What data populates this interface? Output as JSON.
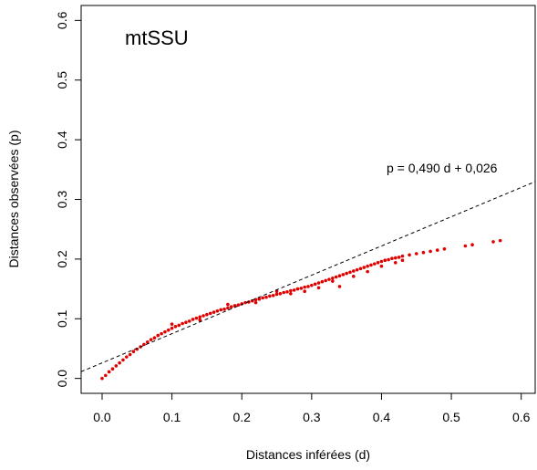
{
  "chart_data": {
    "type": "scatter",
    "title": "",
    "inset_label": "mtSSU",
    "xlabel": "Distances inférées (d)",
    "ylabel": "Distances observées (p)",
    "xlim": [
      -0.03,
      0.62
    ],
    "ylim": [
      -0.025,
      0.625
    ],
    "x_ticks": [
      "0.0",
      "0.1",
      "0.2",
      "0.3",
      "0.4",
      "0.5",
      "0.6"
    ],
    "y_ticks": [
      "0.0",
      "0.1",
      "0.2",
      "0.3",
      "0.4",
      "0.5",
      "0.6"
    ],
    "x_tick_values": [
      0,
      0.1,
      0.2,
      0.3,
      0.4,
      0.5,
      0.6
    ],
    "y_tick_values": [
      0,
      0.1,
      0.2,
      0.3,
      0.4,
      0.5,
      0.6
    ],
    "grid": false,
    "point_color": "#e00000",
    "fit_line": {
      "label": "p = 0,490 d + 0,026",
      "slope": 0.49,
      "intercept": 0.026,
      "style": "dashed",
      "color": "#000000"
    },
    "series": [
      {
        "points": [
          [
            0.0,
            0.0
          ],
          [
            0.005,
            0.005
          ],
          [
            0.01,
            0.011
          ],
          [
            0.015,
            0.016
          ],
          [
            0.02,
            0.021
          ],
          [
            0.025,
            0.026
          ],
          [
            0.03,
            0.031
          ],
          [
            0.035,
            0.036
          ],
          [
            0.04,
            0.04
          ],
          [
            0.045,
            0.045
          ],
          [
            0.05,
            0.049
          ],
          [
            0.055,
            0.053
          ],
          [
            0.06,
            0.057
          ],
          [
            0.065,
            0.061
          ],
          [
            0.07,
            0.065
          ],
          [
            0.075,
            0.068
          ],
          [
            0.08,
            0.072
          ],
          [
            0.085,
            0.075
          ],
          [
            0.09,
            0.078
          ],
          [
            0.095,
            0.081
          ],
          [
            0.1,
            0.084
          ],
          [
            0.105,
            0.087
          ],
          [
            0.11,
            0.089
          ],
          [
            0.115,
            0.092
          ],
          [
            0.12,
            0.094
          ],
          [
            0.125,
            0.096
          ],
          [
            0.13,
            0.099
          ],
          [
            0.135,
            0.101
          ],
          [
            0.14,
            0.103
          ],
          [
            0.145,
            0.105
          ],
          [
            0.15,
            0.107
          ],
          [
            0.155,
            0.109
          ],
          [
            0.16,
            0.111
          ],
          [
            0.165,
            0.113
          ],
          [
            0.17,
            0.115
          ],
          [
            0.175,
            0.116
          ],
          [
            0.18,
            0.118
          ],
          [
            0.185,
            0.12
          ],
          [
            0.19,
            0.122
          ],
          [
            0.195,
            0.123
          ],
          [
            0.2,
            0.125
          ],
          [
            0.205,
            0.127
          ],
          [
            0.21,
            0.128
          ],
          [
            0.215,
            0.13
          ],
          [
            0.22,
            0.132
          ],
          [
            0.225,
            0.133
          ],
          [
            0.23,
            0.135
          ],
          [
            0.235,
            0.136
          ],
          [
            0.24,
            0.138
          ],
          [
            0.245,
            0.139
          ],
          [
            0.25,
            0.141
          ],
          [
            0.255,
            0.142
          ],
          [
            0.26,
            0.144
          ],
          [
            0.265,
            0.145
          ],
          [
            0.27,
            0.147
          ],
          [
            0.275,
            0.148
          ],
          [
            0.28,
            0.15
          ],
          [
            0.285,
            0.151
          ],
          [
            0.29,
            0.153
          ],
          [
            0.295,
            0.154
          ],
          [
            0.3,
            0.156
          ],
          [
            0.305,
            0.158
          ],
          [
            0.31,
            0.16
          ],
          [
            0.315,
            0.162
          ],
          [
            0.32,
            0.164
          ],
          [
            0.325,
            0.166
          ],
          [
            0.33,
            0.168
          ],
          [
            0.335,
            0.17
          ],
          [
            0.34,
            0.172
          ],
          [
            0.345,
            0.174
          ],
          [
            0.35,
            0.176
          ],
          [
            0.355,
            0.178
          ],
          [
            0.36,
            0.18
          ],
          [
            0.365,
            0.182
          ],
          [
            0.37,
            0.184
          ],
          [
            0.375,
            0.186
          ],
          [
            0.38,
            0.188
          ],
          [
            0.385,
            0.19
          ],
          [
            0.39,
            0.192
          ],
          [
            0.395,
            0.194
          ],
          [
            0.4,
            0.196
          ],
          [
            0.405,
            0.198
          ],
          [
            0.41,
            0.199
          ],
          [
            0.415,
            0.201
          ],
          [
            0.42,
            0.202
          ],
          [
            0.425,
            0.203
          ],
          [
            0.43,
            0.205
          ],
          [
            0.44,
            0.207
          ],
          [
            0.45,
            0.209
          ],
          [
            0.46,
            0.211
          ],
          [
            0.47,
            0.213
          ],
          [
            0.48,
            0.215
          ],
          [
            0.49,
            0.217
          ],
          [
            0.52,
            0.222
          ],
          [
            0.53,
            0.224
          ],
          [
            0.56,
            0.229
          ],
          [
            0.57,
            0.231
          ],
          [
            0.1,
            0.091
          ],
          [
            0.14,
            0.098
          ],
          [
            0.18,
            0.124
          ],
          [
            0.22,
            0.127
          ],
          [
            0.25,
            0.146
          ],
          [
            0.27,
            0.142
          ],
          [
            0.29,
            0.146
          ],
          [
            0.31,
            0.152
          ],
          [
            0.33,
            0.163
          ],
          [
            0.34,
            0.154
          ],
          [
            0.36,
            0.171
          ],
          [
            0.38,
            0.179
          ],
          [
            0.4,
            0.188
          ],
          [
            0.42,
            0.194
          ],
          [
            0.43,
            0.198
          ]
        ]
      }
    ]
  }
}
